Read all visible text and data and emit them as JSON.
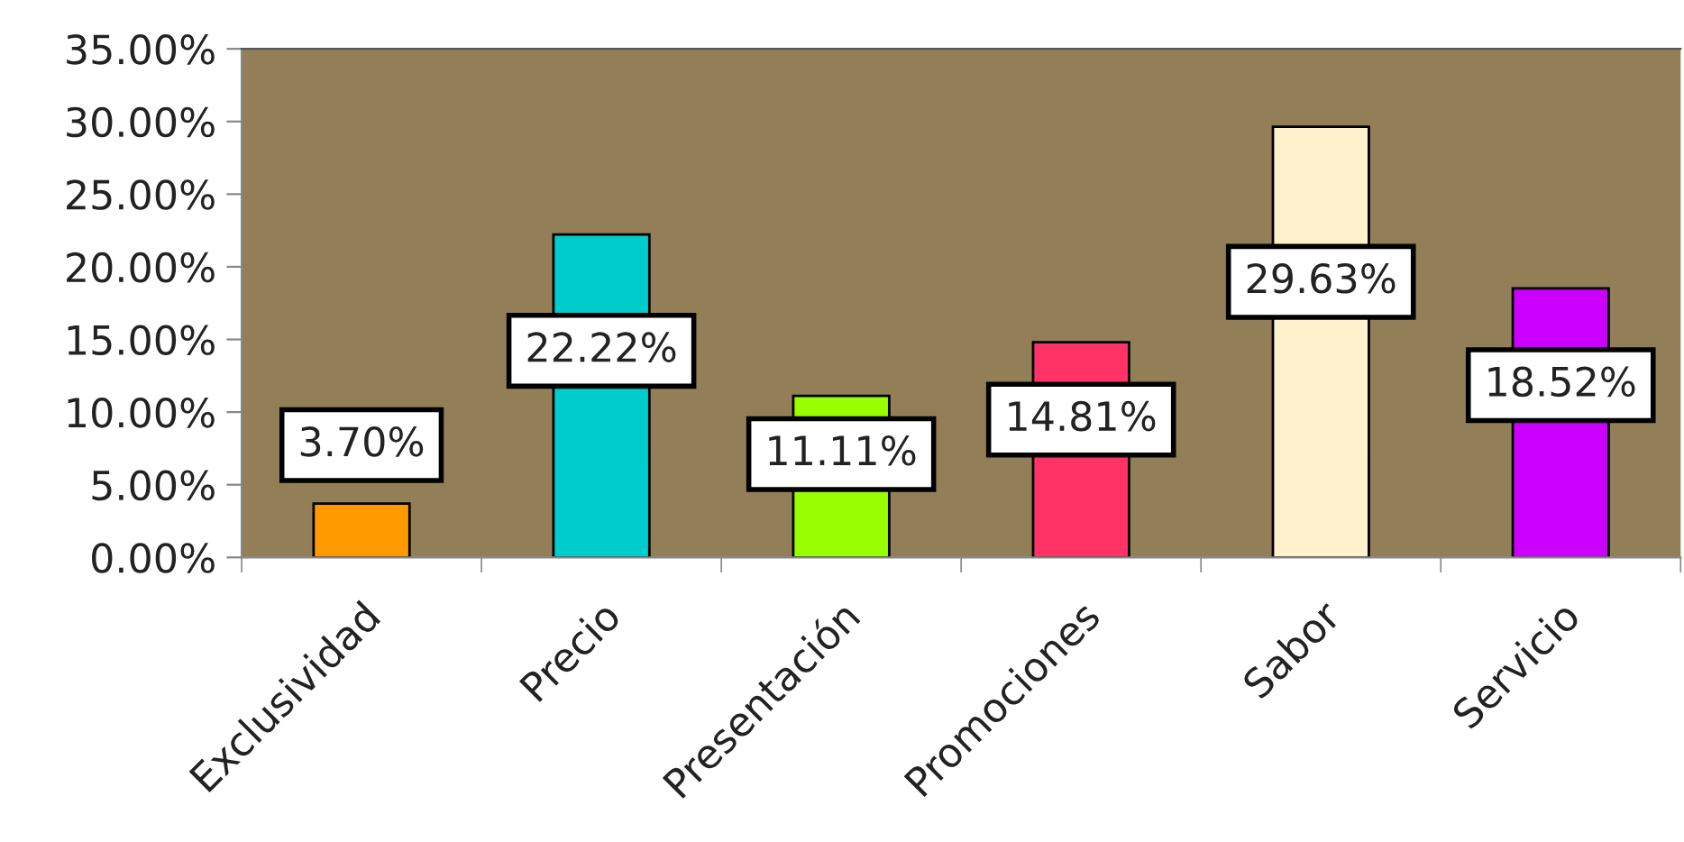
{
  "chart_data": {
    "type": "bar",
    "categories": [
      "Exclusividad",
      "Precio",
      "Presentación",
      "Promociones",
      "Sabor",
      "Servicio"
    ],
    "values": [
      3.7,
      22.22,
      11.11,
      14.81,
      29.63,
      18.52
    ],
    "colors": [
      "#ff9900",
      "#00cccc",
      "#99ff00",
      "#ff3366",
      "#fff2cc",
      "#cc00ff"
    ],
    "value_labels": [
      "3.70%",
      "22.22%",
      "11.11%",
      "14.81%",
      "29.63%",
      "18.52%"
    ],
    "ylim": [
      0,
      35
    ],
    "yticks": [
      {
        "value": 0,
        "label": "0.00%"
      },
      {
        "value": 5,
        "label": "5.00%"
      },
      {
        "value": 10,
        "label": "10.00%"
      },
      {
        "value": 15,
        "label": "15.00%"
      },
      {
        "value": 20,
        "label": "20.00%"
      },
      {
        "value": 25,
        "label": "25.00%"
      },
      {
        "value": 30,
        "label": "30.00%"
      },
      {
        "value": 35,
        "label": "35.00%"
      }
    ],
    "grid": false,
    "legend": false
  }
}
